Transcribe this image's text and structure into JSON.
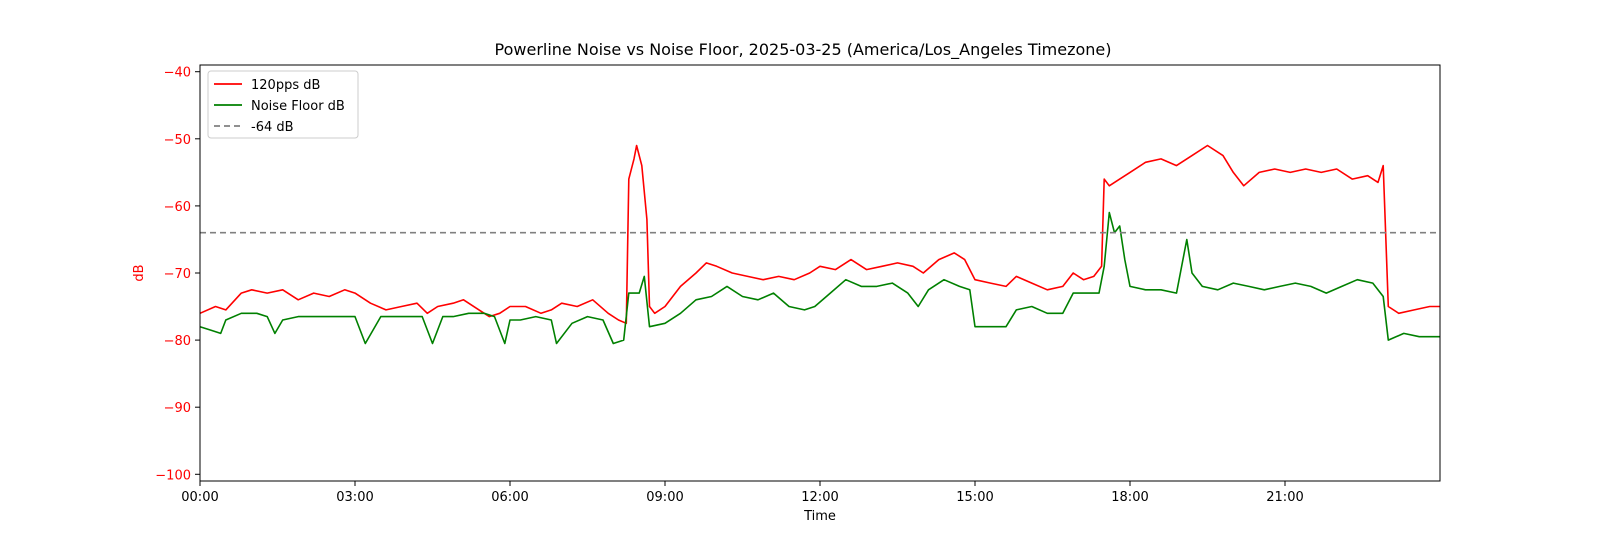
{
  "chart_data": {
    "type": "line",
    "title": "Powerline Noise vs Noise Floor, 2025-03-25 (America/Los_Angeles Timezone)",
    "xlabel": "Time",
    "ylabel": "dB",
    "x_unit": "hours since 00:00",
    "xlim": [
      0,
      24
    ],
    "ylim": [
      -101,
      -39
    ],
    "x_ticks": [
      0,
      3,
      6,
      9,
      12,
      15,
      18,
      21
    ],
    "x_tick_labels": [
      "00:00",
      "03:00",
      "06:00",
      "09:00",
      "12:00",
      "15:00",
      "18:00",
      "21:00"
    ],
    "y_ticks": [
      -40,
      -50,
      -60,
      -70,
      -80,
      -90,
      -100
    ],
    "y_tick_labels": [
      "−40",
      "−50",
      "−60",
      "−70",
      "−80",
      "−90",
      "−100"
    ],
    "ylabel_color": "#ff0000",
    "legend_position": "top-left",
    "grid": false,
    "series": [
      {
        "name": "120pps dB",
        "color": "#ff0000",
        "style": "solid",
        "x": [
          0,
          0.3,
          0.5,
          0.8,
          1.0,
          1.3,
          1.6,
          1.9,
          2.2,
          2.5,
          2.8,
          3.0,
          3.3,
          3.6,
          3.9,
          4.2,
          4.4,
          4.6,
          4.9,
          5.1,
          5.4,
          5.6,
          5.8,
          6.0,
          6.3,
          6.6,
          6.8,
          7.0,
          7.3,
          7.6,
          7.9,
          8.1,
          8.25,
          8.3,
          8.4,
          8.45,
          8.55,
          8.65,
          8.7,
          8.8,
          9.0,
          9.3,
          9.6,
          9.8,
          10.0,
          10.3,
          10.6,
          10.9,
          11.2,
          11.5,
          11.8,
          12.0,
          12.3,
          12.6,
          12.9,
          13.2,
          13.5,
          13.8,
          14.0,
          14.3,
          14.6,
          14.8,
          15.0,
          15.3,
          15.6,
          15.8,
          16.1,
          16.4,
          16.7,
          16.9,
          17.1,
          17.3,
          17.45,
          17.5,
          17.6,
          17.8,
          18.0,
          18.3,
          18.6,
          18.9,
          19.2,
          19.5,
          19.8,
          20.0,
          20.2,
          20.5,
          20.8,
          21.1,
          21.4,
          21.7,
          22.0,
          22.3,
          22.6,
          22.8,
          22.9,
          23.0,
          23.2,
          23.5,
          23.8,
          24.0
        ],
        "values": [
          -76,
          -75,
          -75.5,
          -73,
          -72.5,
          -73,
          -72.5,
          -74,
          -73,
          -73.5,
          -72.5,
          -73,
          -74.5,
          -75.5,
          -75,
          -74.5,
          -76,
          -75,
          -74.5,
          -74,
          -75.5,
          -76.5,
          -76,
          -75,
          -75,
          -76,
          -75.5,
          -74.5,
          -75,
          -74,
          -76,
          -77,
          -77.5,
          -56,
          -53,
          -51,
          -54,
          -62,
          -75,
          -76,
          -75,
          -72,
          -70,
          -68.5,
          -69,
          -70,
          -70.5,
          -71,
          -70.5,
          -71,
          -70,
          -69,
          -69.5,
          -68,
          -69.5,
          -69,
          -68.5,
          -69,
          -70,
          -68,
          -67,
          -68,
          -71,
          -71.5,
          -72,
          -70.5,
          -71.5,
          -72.5,
          -72,
          -70,
          -71,
          -70.5,
          -69,
          -56,
          -57,
          -56,
          -55,
          -53.5,
          -53,
          -54,
          -52.5,
          -51,
          -52.5,
          -55,
          -57,
          -55,
          -54.5,
          -55,
          -54.5,
          -55,
          -54.5,
          -56,
          -55.5,
          -56.5,
          -54,
          -75,
          -76,
          -75.5,
          -75,
          -75
        ]
      },
      {
        "name": "Noise Floor dB",
        "color": "#008000",
        "style": "solid",
        "x": [
          0,
          0.2,
          0.4,
          0.5,
          0.8,
          1.1,
          1.3,
          1.45,
          1.6,
          1.9,
          2.2,
          2.4,
          2.6,
          2.8,
          3.0,
          3.2,
          3.5,
          3.8,
          4.1,
          4.3,
          4.5,
          4.7,
          4.9,
          5.2,
          5.5,
          5.7,
          5.9,
          6.0,
          6.2,
          6.5,
          6.8,
          6.9,
          7.2,
          7.5,
          7.8,
          8.0,
          8.2,
          8.3,
          8.5,
          8.6,
          8.7,
          9.0,
          9.3,
          9.6,
          9.9,
          10.2,
          10.5,
          10.8,
          11.1,
          11.4,
          11.7,
          11.9,
          12.2,
          12.5,
          12.8,
          13.1,
          13.4,
          13.7,
          13.9,
          14.1,
          14.4,
          14.7,
          14.9,
          15.0,
          15.3,
          15.6,
          15.8,
          16.1,
          16.4,
          16.7,
          16.9,
          17.2,
          17.4,
          17.5,
          17.6,
          17.7,
          17.8,
          17.9,
          18.0,
          18.3,
          18.6,
          18.9,
          19.1,
          19.2,
          19.4,
          19.7,
          20.0,
          20.3,
          20.6,
          20.9,
          21.2,
          21.5,
          21.8,
          22.1,
          22.4,
          22.7,
          22.9,
          23.0,
          23.3,
          23.6,
          24.0
        ],
        "values": [
          -78,
          -78.5,
          -79,
          -77,
          -76,
          -76,
          -76.5,
          -79,
          -77,
          -76.5,
          -76.5,
          -76.5,
          -76.5,
          -76.5,
          -76.5,
          -80.5,
          -76.5,
          -76.5,
          -76.5,
          -76.5,
          -80.5,
          -76.5,
          -76.5,
          -76,
          -76,
          -76.5,
          -80.5,
          -77,
          -77,
          -76.5,
          -77,
          -80.5,
          -77.5,
          -76.5,
          -77,
          -80.5,
          -80,
          -73,
          -73,
          -70.5,
          -78,
          -77.5,
          -76,
          -74,
          -73.5,
          -72,
          -73.5,
          -74,
          -73,
          -75,
          -75.5,
          -75,
          -73,
          -71,
          -72,
          -72,
          -71.5,
          -73,
          -75,
          -72.5,
          -71,
          -72,
          -72.5,
          -78,
          -78,
          -78,
          -75.5,
          -75,
          -76,
          -76,
          -73,
          -73,
          -73,
          -69,
          -61,
          -64,
          -63,
          -68,
          -72,
          -72.5,
          -72.5,
          -73,
          -65,
          -70,
          -72,
          -72.5,
          -71.5,
          -72,
          -72.5,
          -72,
          -71.5,
          -72,
          -73,
          -72,
          -71,
          -71.5,
          -73.5,
          -80,
          -79,
          -79.5,
          -79.5
        ]
      },
      {
        "name": "-64 dB",
        "color": "#808080",
        "style": "dashed",
        "x": [
          0,
          24
        ],
        "values": [
          -64,
          -64
        ]
      }
    ]
  }
}
